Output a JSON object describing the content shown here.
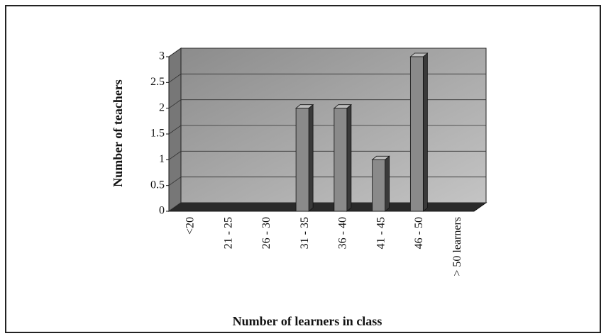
{
  "chart_data": {
    "type": "bar3d",
    "categories": [
      "<20",
      "21 - 25",
      "26 - 30",
      "31 - 35",
      "36 - 40",
      "41 - 45",
      "46 - 50",
      "> 50 learners"
    ],
    "values": [
      0,
      0,
      0,
      2,
      2,
      1,
      3,
      0
    ],
    "color": "#8a8a8a",
    "ylabel": "Number of teachers",
    "xlabel": "Number of learners in class",
    "ylim": [
      0,
      3
    ],
    "yticks": [
      0,
      0.5,
      1,
      1.5,
      2,
      2.5,
      3
    ],
    "grid": true
  }
}
